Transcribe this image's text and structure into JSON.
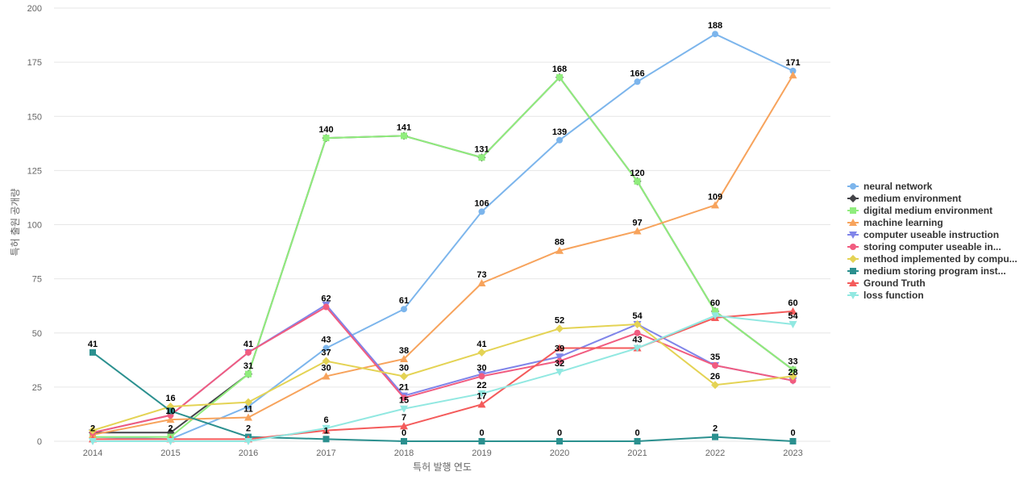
{
  "chart_data": {
    "type": "line",
    "title": "",
    "xlabel": "특허 발행 연도",
    "ylabel": "특허 출원 공개량",
    "ylim": [
      0,
      200
    ],
    "yticks": [
      0,
      25,
      50,
      75,
      100,
      125,
      150,
      175,
      200
    ],
    "categories": [
      "2014",
      "2015",
      "2016",
      "2017",
      "2018",
      "2019",
      "2020",
      "2021",
      "2022",
      "2023"
    ],
    "legend_position": "right",
    "series": [
      {
        "name": "neural network",
        "color": "#7cb5ec",
        "marker": "circle",
        "values": [
          2,
          1,
          16,
          43,
          61,
          106,
          139,
          166,
          188,
          171
        ],
        "labels": [
          false,
          false,
          false,
          true,
          true,
          true,
          true,
          true,
          true,
          true
        ]
      },
      {
        "name": "medium environment",
        "color": "#434348",
        "marker": "diamond",
        "values": [
          4,
          4,
          31,
          140,
          141,
          131,
          168,
          120,
          60,
          33
        ],
        "labels": [
          false,
          false,
          false,
          false,
          false,
          false,
          false,
          false,
          false,
          false
        ]
      },
      {
        "name": "digital medium environment",
        "color": "#90ed7d",
        "marker": "square",
        "values": [
          2,
          2,
          31,
          140,
          141,
          131,
          168,
          120,
          60,
          33
        ],
        "labels": [
          true,
          true,
          true,
          true,
          true,
          true,
          true,
          true,
          true,
          true
        ]
      },
      {
        "name": "machine learning",
        "color": "#f7a35c",
        "marker": "triangle",
        "values": [
          3,
          10,
          11,
          30,
          38,
          73,
          88,
          97,
          109,
          169
        ],
        "labels": [
          false,
          true,
          true,
          true,
          true,
          true,
          true,
          true,
          true,
          false
        ]
      },
      {
        "name": "computer useable instruction",
        "color": "#8085e9",
        "marker": "triangle-down",
        "values": [
          4,
          12,
          41,
          63,
          21,
          31,
          39,
          54,
          35,
          28
        ],
        "labels": [
          false,
          false,
          false,
          false,
          true,
          false,
          true,
          false,
          false,
          false
        ]
      },
      {
        "name": "storing computer useable in...",
        "color": "#f15c80",
        "marker": "circle",
        "values": [
          4,
          12,
          41,
          62,
          20,
          30,
          37,
          50,
          35,
          28
        ],
        "labels": [
          false,
          false,
          true,
          true,
          false,
          true,
          false,
          false,
          true,
          true
        ]
      },
      {
        "name": "method implemented by compu...",
        "color": "#e4d354",
        "marker": "diamond",
        "values": [
          5,
          16,
          18,
          37,
          30,
          41,
          52,
          54,
          26,
          30
        ],
        "labels": [
          false,
          true,
          false,
          true,
          true,
          true,
          true,
          true,
          true,
          false
        ]
      },
      {
        "name": "medium storing program inst...",
        "color": "#2b908f",
        "marker": "square",
        "values": [
          41,
          14,
          2,
          1,
          0,
          0,
          0,
          0,
          2,
          0
        ],
        "labels": [
          true,
          false,
          true,
          true,
          true,
          true,
          true,
          true,
          true,
          true
        ]
      },
      {
        "name": "Ground Truth",
        "color": "#f45b5b",
        "marker": "triangle",
        "values": [
          1,
          1,
          1,
          5,
          7,
          17,
          43,
          43,
          57,
          60
        ],
        "labels": [
          false,
          false,
          false,
          false,
          true,
          true,
          false,
          true,
          false,
          true
        ]
      },
      {
        "name": "loss function",
        "color": "#91e8e1",
        "marker": "triangle-down",
        "values": [
          0,
          0,
          0,
          6,
          15,
          22,
          32,
          43,
          58,
          54
        ],
        "labels": [
          false,
          false,
          false,
          true,
          true,
          true,
          true,
          false,
          false,
          true
        ]
      }
    ]
  }
}
